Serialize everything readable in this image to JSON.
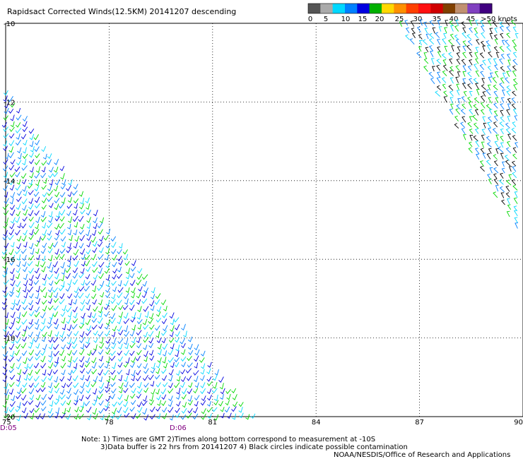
{
  "title": "Rapidsact Corrected Winds(12.5KM) 20141207 descending",
  "legend": {
    "labels": [
      "0",
      "5",
      "10",
      "15",
      "20",
      "25",
      "30",
      "35",
      "40",
      "45",
      ">50 knots"
    ],
    "colors": [
      "#555555",
      "#aaaaaa",
      "#00d8ff",
      "#0080ff",
      "#0000e0",
      "#00b000",
      "#ffd800",
      "#ff9000",
      "#ff4000",
      "#ff1010",
      "#d00000",
      "#804000",
      "#c09070",
      "#8040c0",
      "#400080"
    ]
  },
  "footer": {
    "note_line1": "Note: 1) Times are GMT 2)Times along bottom correspond to measurement at -10S",
    "note_line2": "3)Data buffer is 22 hrs from 20141207 4) Black circles indicate possible contamination",
    "credit": "NOAA/NESDIS/Office of Research and Applications"
  },
  "chart_data": {
    "type": "scatter",
    "title": "Rapidsact Corrected Winds(12.5KM) 20141207 descending",
    "x_ticks": [
      "75",
      "78",
      "81",
      "84",
      "87",
      "90"
    ],
    "y_ticks": [
      "-10",
      "-12",
      "-14",
      "-16",
      "-18",
      "-20"
    ],
    "xlim": [
      75,
      90
    ],
    "ylim": [
      -20,
      -10
    ],
    "grid": true,
    "grid_style": "dotted",
    "time_labels": [
      {
        "x": 75,
        "label": "D:05"
      },
      {
        "x": 80,
        "label": "D:06"
      }
    ],
    "swaths": [
      {
        "name": "western swath",
        "boundary": [
          [
            75,
            -11.6
          ],
          [
            75,
            -20
          ],
          [
            82.3,
            -20
          ]
        ],
        "dominant_speed_knots": [
          10,
          20
        ],
        "colors": [
          "#0000e0",
          "#00d800",
          "#0080ff",
          "#00d8ff"
        ]
      },
      {
        "name": "eastern swath",
        "boundary": [
          [
            86.4,
            -10
          ],
          [
            90,
            -10
          ],
          [
            90,
            -15.6
          ]
        ],
        "dominant_speed_knots": [
          0,
          10
        ],
        "colors": [
          "#00d8ff",
          "#000000",
          "#0080ff",
          "#00d800"
        ]
      }
    ]
  }
}
